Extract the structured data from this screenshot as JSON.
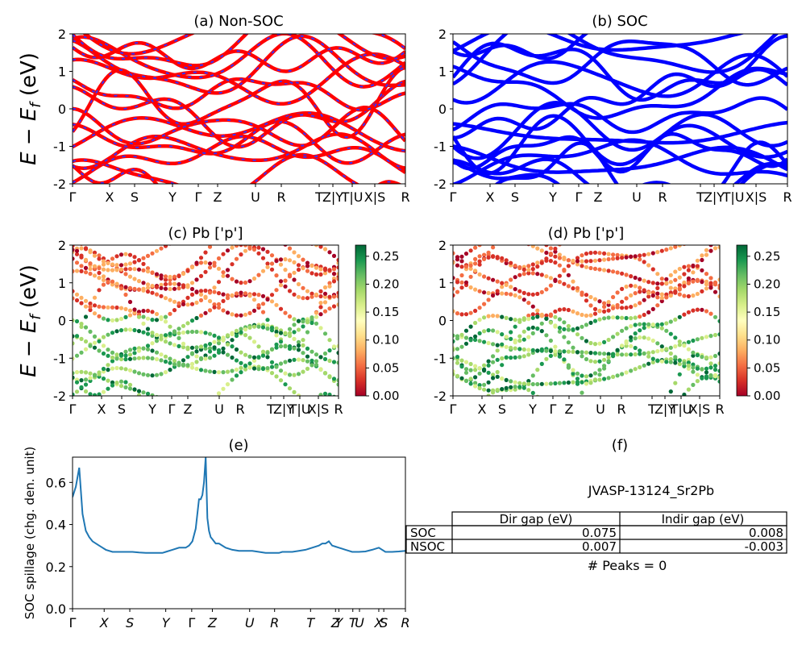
{
  "figure": {
    "ylabel_band": "E − E",
    "ylabel_band_sub": "f",
    "ylabel_band_unit": " (eV)",
    "kpath": [
      "Γ",
      "X",
      "S",
      "Y",
      "Γ",
      "Z",
      "U",
      "R",
      "T",
      "Z|Y",
      "T|U",
      "X|S",
      "R"
    ]
  },
  "colors": {
    "nonsoc_solid": "#ff0000",
    "nonsoc_dash": "#3333ff",
    "soc": "#0000ff",
    "spillage_line": "#1f77b4",
    "cmap": [
      "#a50026",
      "#d73027",
      "#f46d43",
      "#fdae61",
      "#fee08b",
      "#ffffbf",
      "#d9ef8b",
      "#a6d96a",
      "#66bd63",
      "#1a9850",
      "#006837"
    ]
  },
  "chart_data": [
    {
      "id": "a",
      "type": "line",
      "title": "(a) Non-SOC",
      "ylim": [
        -2,
        2
      ],
      "yticks": [
        -2,
        -1,
        0,
        1,
        2
      ],
      "x_tick_labels": [
        "Γ",
        "X",
        "S",
        "Y",
        "Γ",
        "Z",
        "U",
        "R",
        "T",
        "Z|Y",
        "T|U",
        "X|S",
        "R"
      ],
      "series_desc": "dense set of electronic band lines, red solid with blue dashed overlay"
    },
    {
      "id": "b",
      "type": "line",
      "title": "(b) SOC",
      "ylim": [
        -2,
        2
      ],
      "yticks": [
        -2,
        -1,
        0,
        1,
        2
      ],
      "x_tick_labels": [
        "Γ",
        "X",
        "S",
        "Y",
        "Γ",
        "Z",
        "U",
        "R",
        "T",
        "Z|Y",
        "T|U",
        "X|S",
        "R"
      ],
      "series_desc": "dense set of electronic band lines in blue"
    },
    {
      "id": "c",
      "type": "scatter",
      "title": "(c)  Pb ['p']",
      "ylim": [
        -2,
        2
      ],
      "yticks": [
        -2,
        -1,
        0,
        1,
        2
      ],
      "x_tick_labels": [
        "Γ",
        "X",
        "S",
        "Y",
        "Γ",
        "Z",
        "U",
        "R",
        "T",
        "Z|Y",
        "T|U",
        "X|S",
        "R"
      ],
      "colorbar": {
        "min": 0.0,
        "max": 0.27,
        "ticks": [
          "0.00",
          "0.05",
          "0.10",
          "0.15",
          "0.20",
          "0.25"
        ]
      }
    },
    {
      "id": "d",
      "type": "scatter",
      "title": "(d) Pb ['p']",
      "ylim": [
        -2,
        2
      ],
      "yticks": [
        -2,
        -1,
        0,
        1,
        2
      ],
      "x_tick_labels": [
        "Γ",
        "X",
        "S",
        "Y",
        "Γ",
        "Z",
        "U",
        "R",
        "T",
        "Z|Y",
        "T|U",
        "X|S",
        "R"
      ],
      "colorbar": {
        "min": 0.0,
        "max": 0.27,
        "ticks": [
          "0.00",
          "0.05",
          "0.10",
          "0.15",
          "0.20",
          "0.25"
        ]
      }
    },
    {
      "id": "e",
      "type": "line",
      "title": "(e)",
      "ylabel": "SOC spillage (chg. den. unit)",
      "ylim": [
        0.0,
        0.72
      ],
      "yticks": [
        "0.0",
        "0.2",
        "0.4",
        "0.6"
      ],
      "x_tick_labels": [
        "Γ",
        "X",
        "S",
        "Y",
        "Γ",
        "Z",
        "U",
        "R",
        "T",
        "Z",
        "Y",
        "T",
        "U",
        "X",
        "S",
        "R"
      ],
      "x": [
        0,
        0.01,
        0.02,
        0.03,
        0.04,
        0.05,
        0.06,
        0.07,
        0.08,
        0.09,
        0.1,
        0.12,
        0.14,
        0.16,
        0.18,
        0.2,
        0.22,
        0.24,
        0.26,
        0.27,
        0.28,
        0.3,
        0.32,
        0.34,
        0.35,
        0.36,
        0.37,
        0.38,
        0.385,
        0.39,
        0.395,
        0.4,
        0.405,
        0.41,
        0.415,
        0.42,
        0.43,
        0.44,
        0.46,
        0.48,
        0.5,
        0.52,
        0.54,
        0.56,
        0.58,
        0.6,
        0.61,
        0.62,
        0.63,
        0.64,
        0.66,
        0.68,
        0.7,
        0.72,
        0.74,
        0.75,
        0.76,
        0.77,
        0.78,
        0.79,
        0.8,
        0.81,
        0.82,
        0.83,
        0.84,
        0.85,
        0.86,
        0.88,
        0.9,
        0.92,
        0.94,
        0.96,
        0.98,
        1.0
      ],
      "values": [
        0.53,
        0.58,
        0.67,
        0.45,
        0.37,
        0.34,
        0.32,
        0.31,
        0.3,
        0.29,
        0.28,
        0.27,
        0.27,
        0.27,
        0.27,
        0.267,
        0.265,
        0.265,
        0.265,
        0.265,
        0.27,
        0.28,
        0.29,
        0.29,
        0.3,
        0.32,
        0.38,
        0.52,
        0.52,
        0.54,
        0.6,
        0.72,
        0.43,
        0.37,
        0.34,
        0.33,
        0.31,
        0.31,
        0.29,
        0.28,
        0.275,
        0.275,
        0.275,
        0.27,
        0.265,
        0.265,
        0.265,
        0.265,
        0.27,
        0.27,
        0.27,
        0.275,
        0.28,
        0.29,
        0.3,
        0.31,
        0.31,
        0.32,
        0.3,
        0.295,
        0.29,
        0.285,
        0.28,
        0.275,
        0.27,
        0.27,
        0.27,
        0.272,
        0.28,
        0.29,
        0.27,
        0.27,
        0.272,
        0.275
      ],
      "tick_x": [
        0,
        0.095,
        0.172,
        0.28,
        0.358,
        0.42,
        0.532,
        0.607,
        0.715,
        0.79,
        0.8,
        0.842,
        0.862,
        0.92,
        0.935,
        1.0
      ]
    },
    {
      "id": "f",
      "type": "table",
      "title": "(f)",
      "caption": "JVASP-13124_Sr2Pb",
      "columns": [
        "Dir gap (eV)",
        "Indir gap (eV)"
      ],
      "rows": [
        {
          "label": "SOC",
          "values": [
            "0.075",
            "0.008"
          ]
        },
        {
          "label": "NSOC",
          "values": [
            "0.007",
            "-0.003"
          ]
        }
      ],
      "footer": "# Peaks = 0"
    }
  ]
}
